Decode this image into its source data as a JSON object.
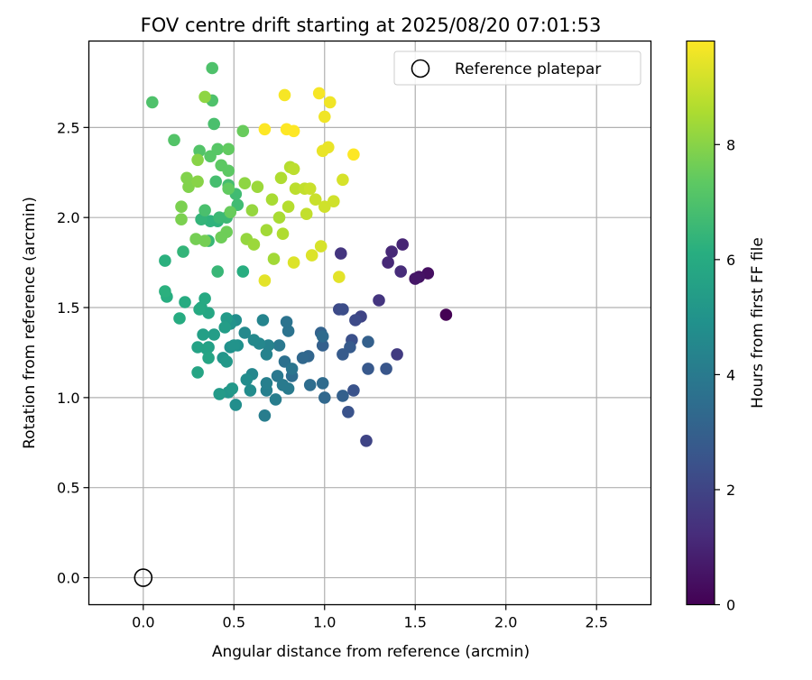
{
  "chart_data": {
    "type": "scatter",
    "title": "FOV centre drift starting at 2025/08/20 07:01:53",
    "xlabel": "Angular distance from reference (arcmin)",
    "ylabel": "Rotation from reference (arcmin)",
    "xlim": [
      -0.3,
      2.8
    ],
    "ylim": [
      -0.15,
      2.98
    ],
    "xticks": [
      "0.0",
      "0.5",
      "1.0",
      "1.5",
      "2.0",
      "2.5"
    ],
    "yticks": [
      "0.0",
      "0.5",
      "1.0",
      "1.5",
      "2.0",
      "2.5"
    ],
    "grid": true,
    "legend": {
      "position": "top-right",
      "entries": [
        "Reference platepar"
      ]
    },
    "reference_point": {
      "x": 0.0,
      "y": 0.0,
      "marker": "open-circle"
    },
    "colorbar": {
      "label": "Hours from first FF file",
      "range": [
        0,
        9.8
      ],
      "ticks": [
        "0",
        "2",
        "4",
        "6",
        "8"
      ],
      "colormap": "viridis"
    },
    "series": [
      {
        "points": [
          {
            "x": 1.67,
            "y": 1.46,
            "t": 0.0
          },
          {
            "x": 1.57,
            "y": 1.69,
            "t": 0.4
          },
          {
            "x": 1.52,
            "y": 1.67,
            "t": 0.5
          },
          {
            "x": 1.5,
            "y": 1.66,
            "t": 0.6
          },
          {
            "x": 1.43,
            "y": 1.85,
            "t": 1.0
          },
          {
            "x": 1.37,
            "y": 1.81,
            "t": 1.1
          },
          {
            "x": 1.35,
            "y": 1.75,
            "t": 1.1
          },
          {
            "x": 1.42,
            "y": 1.7,
            "t": 1.2
          },
          {
            "x": 1.3,
            "y": 1.54,
            "t": 1.5
          },
          {
            "x": 1.09,
            "y": 1.8,
            "t": 1.5
          },
          {
            "x": 1.4,
            "y": 1.24,
            "t": 1.7
          },
          {
            "x": 1.23,
            "y": 0.76,
            "t": 2.0
          },
          {
            "x": 1.2,
            "y": 1.45,
            "t": 2.0
          },
          {
            "x": 1.17,
            "y": 1.43,
            "t": 2.2
          },
          {
            "x": 1.08,
            "y": 1.49,
            "t": 2.2
          },
          {
            "x": 1.1,
            "y": 1.49,
            "t": 2.3
          },
          {
            "x": 1.15,
            "y": 1.32,
            "t": 2.4
          },
          {
            "x": 1.13,
            "y": 0.92,
            "t": 2.5
          },
          {
            "x": 1.16,
            "y": 1.04,
            "t": 2.5
          },
          {
            "x": 1.34,
            "y": 1.16,
            "t": 2.6
          },
          {
            "x": 1.24,
            "y": 1.16,
            "t": 2.7
          },
          {
            "x": 1.14,
            "y": 1.28,
            "t": 2.8
          },
          {
            "x": 1.1,
            "y": 1.24,
            "t": 2.8
          },
          {
            "x": 1.1,
            "y": 1.01,
            "t": 3.0
          },
          {
            "x": 1.24,
            "y": 1.31,
            "t": 3.0
          },
          {
            "x": 0.99,
            "y": 1.29,
            "t": 3.0
          },
          {
            "x": 0.98,
            "y": 1.36,
            "t": 3.1
          },
          {
            "x": 0.91,
            "y": 1.23,
            "t": 3.2
          },
          {
            "x": 0.88,
            "y": 1.22,
            "t": 3.3
          },
          {
            "x": 1.0,
            "y": 1.0,
            "t": 3.3
          },
          {
            "x": 0.99,
            "y": 1.08,
            "t": 3.4
          },
          {
            "x": 0.99,
            "y": 1.34,
            "t": 3.4
          },
          {
            "x": 0.92,
            "y": 1.07,
            "t": 3.5
          },
          {
            "x": 0.82,
            "y": 1.12,
            "t": 3.5
          },
          {
            "x": 0.78,
            "y": 1.2,
            "t": 3.6
          },
          {
            "x": 0.8,
            "y": 1.37,
            "t": 3.7
          },
          {
            "x": 0.79,
            "y": 1.42,
            "t": 3.7
          },
          {
            "x": 0.82,
            "y": 1.16,
            "t": 3.8
          },
          {
            "x": 0.74,
            "y": 1.12,
            "t": 3.9
          },
          {
            "x": 0.75,
            "y": 1.29,
            "t": 3.9
          },
          {
            "x": 0.8,
            "y": 1.05,
            "t": 4.0
          },
          {
            "x": 0.77,
            "y": 1.07,
            "t": 4.0
          },
          {
            "x": 0.73,
            "y": 0.99,
            "t": 4.1
          },
          {
            "x": 0.67,
            "y": 0.9,
            "t": 4.1
          },
          {
            "x": 0.68,
            "y": 1.04,
            "t": 4.2
          },
          {
            "x": 0.68,
            "y": 1.08,
            "t": 4.2
          },
          {
            "x": 0.68,
            "y": 1.24,
            "t": 4.3
          },
          {
            "x": 0.69,
            "y": 1.29,
            "t": 4.3
          },
          {
            "x": 0.66,
            "y": 1.43,
            "t": 4.4
          },
          {
            "x": 0.64,
            "y": 1.3,
            "t": 4.5
          },
          {
            "x": 0.6,
            "y": 1.13,
            "t": 4.5
          },
          {
            "x": 0.61,
            "y": 1.32,
            "t": 4.6
          },
          {
            "x": 0.56,
            "y": 1.36,
            "t": 4.6
          },
          {
            "x": 0.57,
            "y": 1.1,
            "t": 4.7
          },
          {
            "x": 0.59,
            "y": 1.04,
            "t": 4.7
          },
          {
            "x": 0.51,
            "y": 1.43,
            "t": 4.8
          },
          {
            "x": 0.51,
            "y": 0.96,
            "t": 4.8
          },
          {
            "x": 0.52,
            "y": 1.29,
            "t": 4.9
          },
          {
            "x": 0.48,
            "y": 1.28,
            "t": 4.9
          },
          {
            "x": 0.5,
            "y": 1.29,
            "t": 5.0
          },
          {
            "x": 0.48,
            "y": 1.41,
            "t": 5.0
          },
          {
            "x": 0.47,
            "y": 1.03,
            "t": 5.1
          },
          {
            "x": 0.44,
            "y": 1.22,
            "t": 5.1
          },
          {
            "x": 0.46,
            "y": 1.2,
            "t": 5.2
          },
          {
            "x": 0.49,
            "y": 1.05,
            "t": 5.2
          },
          {
            "x": 0.42,
            "y": 1.02,
            "t": 5.3
          },
          {
            "x": 0.46,
            "y": 1.44,
            "t": 5.3
          },
          {
            "x": 0.45,
            "y": 1.39,
            "t": 5.4
          },
          {
            "x": 0.39,
            "y": 1.35,
            "t": 5.4
          },
          {
            "x": 0.36,
            "y": 1.28,
            "t": 5.5
          },
          {
            "x": 0.33,
            "y": 1.35,
            "t": 5.5
          },
          {
            "x": 0.35,
            "y": 1.27,
            "t": 5.6
          },
          {
            "x": 0.3,
            "y": 1.28,
            "t": 5.6
          },
          {
            "x": 0.36,
            "y": 1.22,
            "t": 5.7
          },
          {
            "x": 0.3,
            "y": 1.14,
            "t": 5.7
          },
          {
            "x": 0.32,
            "y": 1.5,
            "t": 5.8
          },
          {
            "x": 0.36,
            "y": 1.47,
            "t": 5.8
          },
          {
            "x": 0.34,
            "y": 1.55,
            "t": 5.9
          },
          {
            "x": 0.31,
            "y": 1.49,
            "t": 5.9
          },
          {
            "x": 0.2,
            "y": 1.44,
            "t": 6.0
          },
          {
            "x": 0.23,
            "y": 1.53,
            "t": 6.0
          },
          {
            "x": 0.55,
            "y": 1.7,
            "t": 6.1
          },
          {
            "x": 0.13,
            "y": 1.56,
            "t": 6.1
          },
          {
            "x": 0.12,
            "y": 1.59,
            "t": 6.2
          },
          {
            "x": 0.12,
            "y": 1.76,
            "t": 6.2
          },
          {
            "x": 0.41,
            "y": 1.98,
            "t": 6.3
          },
          {
            "x": 0.37,
            "y": 1.98,
            "t": 6.3
          },
          {
            "x": 0.32,
            "y": 1.99,
            "t": 6.4
          },
          {
            "x": 0.22,
            "y": 1.81,
            "t": 6.4
          },
          {
            "x": 0.41,
            "y": 1.7,
            "t": 6.5
          },
          {
            "x": 0.36,
            "y": 1.87,
            "t": 6.5
          },
          {
            "x": 0.46,
            "y": 2.0,
            "t": 6.6
          },
          {
            "x": 0.42,
            "y": 2.0,
            "t": 6.6
          },
          {
            "x": 0.52,
            "y": 2.07,
            "t": 6.7
          },
          {
            "x": 0.51,
            "y": 2.13,
            "t": 6.7
          },
          {
            "x": 0.47,
            "y": 2.18,
            "t": 6.8
          },
          {
            "x": 0.4,
            "y": 2.2,
            "t": 6.8
          },
          {
            "x": 0.34,
            "y": 2.04,
            "t": 6.9
          },
          {
            "x": 0.39,
            "y": 2.52,
            "t": 6.9
          },
          {
            "x": 0.38,
            "y": 2.65,
            "t": 7.0
          },
          {
            "x": 0.38,
            "y": 2.83,
            "t": 7.0
          },
          {
            "x": 0.05,
            "y": 2.64,
            "t": 7.0
          },
          {
            "x": 0.17,
            "y": 2.43,
            "t": 7.1
          },
          {
            "x": 0.31,
            "y": 2.37,
            "t": 7.1
          },
          {
            "x": 0.37,
            "y": 2.34,
            "t": 7.2
          },
          {
            "x": 0.41,
            "y": 2.38,
            "t": 7.2
          },
          {
            "x": 0.43,
            "y": 2.29,
            "t": 7.3
          },
          {
            "x": 0.47,
            "y": 2.26,
            "t": 7.3
          },
          {
            "x": 0.47,
            "y": 2.16,
            "t": 7.4
          },
          {
            "x": 0.47,
            "y": 2.38,
            "t": 7.4
          },
          {
            "x": 0.55,
            "y": 2.48,
            "t": 7.5
          },
          {
            "x": 0.48,
            "y": 2.03,
            "t": 7.5
          },
          {
            "x": 0.46,
            "y": 1.92,
            "t": 7.6
          },
          {
            "x": 0.43,
            "y": 1.89,
            "t": 7.6
          },
          {
            "x": 0.34,
            "y": 1.87,
            "t": 7.7
          },
          {
            "x": 0.29,
            "y": 1.88,
            "t": 7.7
          },
          {
            "x": 0.21,
            "y": 2.06,
            "t": 7.8
          },
          {
            "x": 0.21,
            "y": 1.99,
            "t": 7.8
          },
          {
            "x": 0.24,
            "y": 2.22,
            "t": 7.9
          },
          {
            "x": 0.25,
            "y": 2.17,
            "t": 7.9
          },
          {
            "x": 0.3,
            "y": 2.32,
            "t": 8.0
          },
          {
            "x": 0.3,
            "y": 2.2,
            "t": 8.0
          },
          {
            "x": 0.34,
            "y": 2.67,
            "t": 8.1
          },
          {
            "x": 0.56,
            "y": 2.19,
            "t": 8.1
          },
          {
            "x": 0.57,
            "y": 1.88,
            "t": 8.2
          },
          {
            "x": 0.6,
            "y": 2.04,
            "t": 8.2
          },
          {
            "x": 0.61,
            "y": 1.85,
            "t": 8.3
          },
          {
            "x": 0.63,
            "y": 2.17,
            "t": 8.3
          },
          {
            "x": 0.68,
            "y": 1.93,
            "t": 8.4
          },
          {
            "x": 0.72,
            "y": 1.77,
            "t": 8.4
          },
          {
            "x": 0.71,
            "y": 2.1,
            "t": 8.5
          },
          {
            "x": 0.75,
            "y": 2.0,
            "t": 8.5
          },
          {
            "x": 0.76,
            "y": 2.22,
            "t": 8.6
          },
          {
            "x": 0.77,
            "y": 1.91,
            "t": 8.6
          },
          {
            "x": 0.8,
            "y": 2.06,
            "t": 8.7
          },
          {
            "x": 0.81,
            "y": 2.28,
            "t": 8.7
          },
          {
            "x": 0.83,
            "y": 2.27,
            "t": 8.8
          },
          {
            "x": 0.84,
            "y": 2.16,
            "t": 8.8
          },
          {
            "x": 0.89,
            "y": 2.16,
            "t": 8.9
          },
          {
            "x": 0.9,
            "y": 2.02,
            "t": 8.9
          },
          {
            "x": 0.92,
            "y": 2.16,
            "t": 9.0
          },
          {
            "x": 0.95,
            "y": 2.1,
            "t": 9.0
          },
          {
            "x": 1.0,
            "y": 2.06,
            "t": 9.1
          },
          {
            "x": 1.05,
            "y": 2.09,
            "t": 9.1
          },
          {
            "x": 1.1,
            "y": 2.21,
            "t": 9.2
          },
          {
            "x": 0.98,
            "y": 1.84,
            "t": 9.2
          },
          {
            "x": 0.93,
            "y": 1.79,
            "t": 9.3
          },
          {
            "x": 0.83,
            "y": 1.75,
            "t": 9.3
          },
          {
            "x": 0.67,
            "y": 1.65,
            "t": 9.4
          },
          {
            "x": 1.08,
            "y": 1.67,
            "t": 9.4
          },
          {
            "x": 0.99,
            "y": 2.37,
            "t": 9.5
          },
          {
            "x": 1.02,
            "y": 2.39,
            "t": 9.5
          },
          {
            "x": 1.0,
            "y": 2.56,
            "t": 9.6
          },
          {
            "x": 1.03,
            "y": 2.64,
            "t": 9.6
          },
          {
            "x": 0.97,
            "y": 2.69,
            "t": 9.7
          },
          {
            "x": 0.78,
            "y": 2.68,
            "t": 9.7
          },
          {
            "x": 0.67,
            "y": 2.49,
            "t": 9.8
          },
          {
            "x": 0.79,
            "y": 2.49,
            "t": 9.8
          },
          {
            "x": 0.83,
            "y": 2.48,
            "t": 9.8
          },
          {
            "x": 1.16,
            "y": 2.35,
            "t": 9.8
          }
        ]
      }
    ]
  }
}
